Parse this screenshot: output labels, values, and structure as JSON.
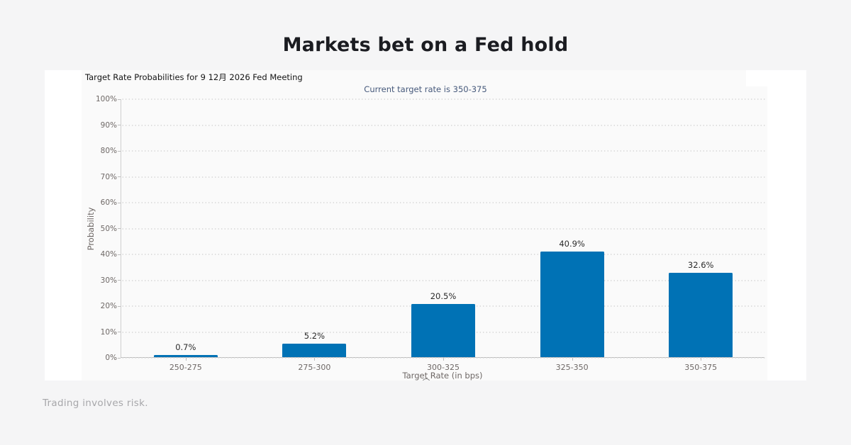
{
  "page": {
    "title": "Markets bet on a Fed hold",
    "footer": "Trading involves risk."
  },
  "chart_data": {
    "type": "bar",
    "title": "Target Rate Probabilities for 9 12月 2026 Fed Meeting",
    "subtitle": "Current target rate is 350-375",
    "categories": [
      "250-275",
      "275-300",
      "300-325",
      "325-350",
      "350-375"
    ],
    "values": [
      0.7,
      5.2,
      20.5,
      40.9,
      32.6
    ],
    "value_labels": [
      "0.7%",
      "5.2%",
      "20.5%",
      "40.9%",
      "32.6%"
    ],
    "xlabel": "Target Rate (in bps)",
    "ylabel": "Probability",
    "ylim": [
      0,
      100
    ],
    "ytick_step": 10,
    "ytick_labels": [
      "0%",
      "10%",
      "20%",
      "30%",
      "40%",
      "50%",
      "60%",
      "70%",
      "80%",
      "90%",
      "100%"
    ],
    "grid": "dotted-horizontal",
    "legend": "none",
    "bar_color": "#0072b5"
  },
  "colors": {
    "page_background": "#f5f5f6",
    "panel_background": "#ffffff",
    "plot_background": "#fafafa",
    "bar": "#0072b5",
    "subtitle_text": "#46597b",
    "axis_text": "#6e6866",
    "title_text": "#1b1c21",
    "footer_text": "#a7a7aa"
  }
}
